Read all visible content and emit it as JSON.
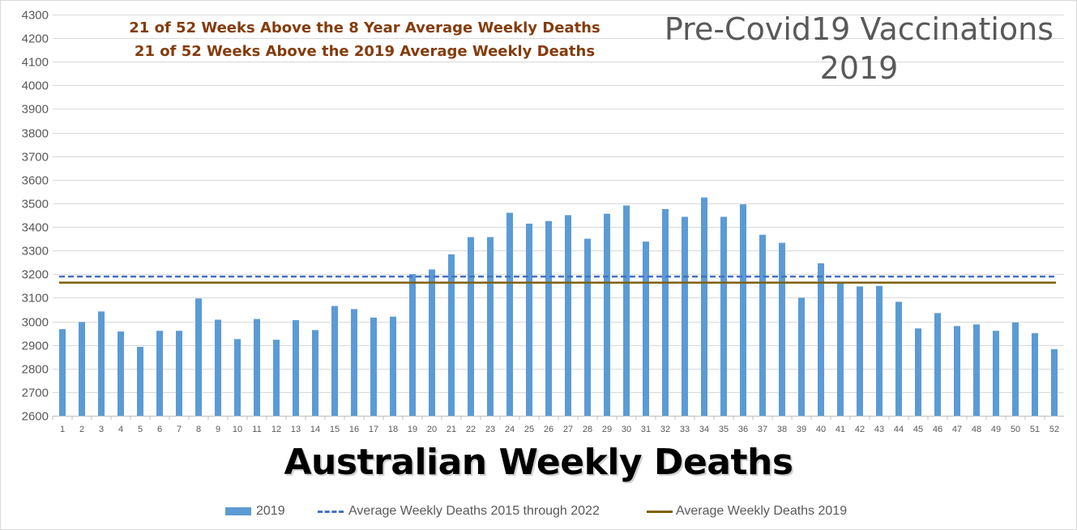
{
  "annotations": [
    "21 of 52 Weeks Above the 8 Year Average Weekly Deaths",
    "21 of 52 Weeks Above the 2019 Average Weekly Deaths"
  ],
  "corner_title": [
    "Pre-Covid19 Vaccinations",
    "2019"
  ],
  "chart_data": {
    "type": "bar",
    "title": "",
    "xlabel": "Australian Weekly Deaths",
    "ylabel": "",
    "ylim": [
      2600,
      4300
    ],
    "ytick_step": 100,
    "grid": true,
    "legend_position": "bottom",
    "categories": [
      "1",
      "2",
      "3",
      "4",
      "5",
      "6",
      "7",
      "8",
      "9",
      "10",
      "11",
      "12",
      "13",
      "14",
      "15",
      "16",
      "17",
      "18",
      "19",
      "20",
      "21",
      "22",
      "23",
      "24",
      "25",
      "26",
      "27",
      "28",
      "29",
      "30",
      "31",
      "32",
      "33",
      "34",
      "35",
      "36",
      "37",
      "38",
      "39",
      "40",
      "41",
      "42",
      "43",
      "44",
      "45",
      "46",
      "47",
      "48",
      "49",
      "50",
      "51",
      "52"
    ],
    "series": [
      {
        "name": "2019",
        "kind": "bar",
        "color": "#5b9bd5",
        "values": [
          2967,
          2997,
          3042,
          2957,
          2892,
          2960,
          2960,
          3097,
          3007,
          2925,
          3010,
          2922,
          3005,
          2963,
          3065,
          3052,
          3016,
          3020,
          3200,
          3220,
          3284,
          3357,
          3357,
          3460,
          3414,
          3425,
          3450,
          3350,
          3456,
          3491,
          3338,
          3476,
          3443,
          3525,
          3443,
          3496,
          3367,
          3333,
          3100,
          3246,
          3162,
          3148,
          3150,
          3083,
          2970,
          3035,
          2980,
          2987,
          2960,
          2995,
          2950,
          2882
        ]
      },
      {
        "name": "Average Weekly Deaths 2015 through 2022",
        "kind": "hline",
        "style": "dashed",
        "color": "#4472c4",
        "value": 3190
      },
      {
        "name": "Average Weekly Deaths 2019",
        "kind": "hline",
        "style": "solid",
        "color": "#7f6000",
        "value": 3164
      }
    ]
  }
}
